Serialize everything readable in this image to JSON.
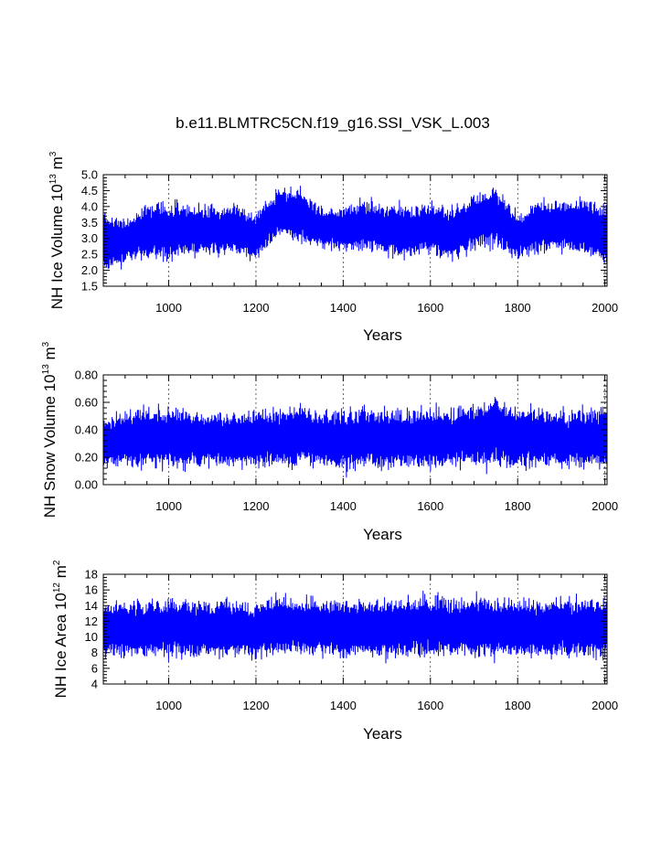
{
  "title": "b.e11.BLMTRC5CN.f19_g16.SSI_VSK_L.003",
  "colors": {
    "series": "#0000ff",
    "axes": "#000000",
    "grid": "#000000"
  },
  "chart_data": [
    {
      "type": "line",
      "name": "ice-volume",
      "ylabel_main": "NH Ice Volume 10",
      "ylabel_exp": "13",
      "ylabel_unit": " m",
      "ylabel_unit_exp": "3",
      "xlabel": "Years",
      "xlim": [
        850,
        2005
      ],
      "ylim": [
        1.5,
        5.0
      ],
      "xticks": [
        1000,
        1200,
        1400,
        1600,
        1800,
        2000
      ],
      "xtick_labels": [
        "1000",
        "1200",
        "1400",
        "1600",
        "1800",
        "2000"
      ],
      "yticks": [
        1.5,
        2.0,
        2.5,
        3.0,
        3.5,
        4.0,
        4.5,
        5.0
      ],
      "ytick_labels": [
        "1.5",
        "2.0",
        "2.5",
        "3.0",
        "3.5",
        "4.0",
        "4.5",
        "5.0"
      ],
      "grid": "vertical dashed at major x ticks",
      "series_envelope": {
        "x": [
          850,
          900,
          950,
          1000,
          1050,
          1100,
          1150,
          1200,
          1250,
          1300,
          1350,
          1400,
          1450,
          1500,
          1550,
          1600,
          1650,
          1700,
          1750,
          1800,
          1850,
          1900,
          1950,
          2005
        ],
        "low": [
          1.6,
          2.0,
          2.1,
          2.0,
          2.2,
          2.2,
          2.2,
          2.0,
          2.8,
          2.6,
          2.5,
          2.4,
          2.3,
          2.2,
          2.1,
          2.3,
          2.0,
          2.4,
          2.4,
          2.1,
          2.3,
          2.3,
          2.2,
          1.9
        ],
        "high": [
          4.2,
          3.8,
          4.4,
          4.4,
          4.3,
          4.3,
          4.4,
          4.0,
          4.8,
          4.9,
          4.2,
          4.2,
          4.5,
          4.3,
          4.3,
          4.4,
          4.2,
          4.6,
          4.9,
          4.0,
          4.5,
          4.5,
          4.6,
          4.3
        ]
      }
    },
    {
      "type": "line",
      "name": "snow-volume",
      "ylabel_main": "NH Snow Volume 10",
      "ylabel_exp": "13",
      "ylabel_unit": " m",
      "ylabel_unit_exp": "3",
      "xlabel": "Years",
      "xlim": [
        850,
        2005
      ],
      "ylim": [
        0.0,
        0.8
      ],
      "xticks": [
        1000,
        1200,
        1400,
        1600,
        1800,
        2000
      ],
      "xtick_labels": [
        "1000",
        "1200",
        "1400",
        "1600",
        "1800",
        "2000"
      ],
      "yticks": [
        0.0,
        0.2,
        0.4,
        0.6,
        0.8
      ],
      "ytick_labels": [
        "0.00",
        "0.20",
        "0.40",
        "0.60",
        "0.80"
      ],
      "grid": "vertical dashed at major x ticks",
      "series_envelope": {
        "x": [
          850,
          900,
          950,
          1000,
          1050,
          1100,
          1150,
          1200,
          1250,
          1300,
          1350,
          1400,
          1450,
          1500,
          1550,
          1600,
          1650,
          1700,
          1750,
          1800,
          1850,
          1900,
          1950,
          2005
        ],
        "low": [
          0.05,
          0.06,
          0.05,
          0.06,
          0.05,
          0.06,
          0.06,
          0.05,
          0.06,
          0.05,
          0.06,
          0.04,
          0.05,
          0.05,
          0.05,
          0.05,
          0.06,
          0.05,
          0.06,
          0.05,
          0.06,
          0.05,
          0.05,
          0.06
        ],
        "high": [
          0.55,
          0.6,
          0.63,
          0.62,
          0.62,
          0.6,
          0.6,
          0.62,
          0.63,
          0.64,
          0.62,
          0.6,
          0.62,
          0.63,
          0.62,
          0.63,
          0.62,
          0.66,
          0.72,
          0.62,
          0.64,
          0.6,
          0.62,
          0.62
        ]
      }
    },
    {
      "type": "line",
      "name": "ice-area",
      "ylabel_main": "NH Ice Area 10",
      "ylabel_exp": "12",
      "ylabel_unit": " m",
      "ylabel_unit_exp": "2",
      "xlabel": "Years",
      "xlim": [
        850,
        2005
      ],
      "ylim": [
        4,
        18
      ],
      "xticks": [
        1000,
        1200,
        1400,
        1600,
        1800,
        2000
      ],
      "xtick_labels": [
        "1000",
        "1200",
        "1400",
        "1600",
        "1800",
        "2000"
      ],
      "yticks": [
        4,
        6,
        8,
        10,
        12,
        14,
        16,
        18
      ],
      "ytick_labels": [
        "4",
        "6",
        "8",
        "10",
        "12",
        "14",
        "16",
        "18"
      ],
      "grid": "vertical dashed at major x ticks",
      "series_envelope": {
        "x": [
          850,
          900,
          950,
          1000,
          1050,
          1100,
          1150,
          1200,
          1250,
          1300,
          1350,
          1400,
          1450,
          1500,
          1550,
          1600,
          1650,
          1700,
          1750,
          1800,
          1850,
          1900,
          1950,
          2005
        ],
        "low": [
          6.2,
          6.2,
          6.3,
          6.2,
          6.1,
          6.2,
          6.3,
          6.0,
          6.3,
          6.4,
          6.3,
          6.2,
          6.3,
          6.2,
          6.3,
          6.2,
          6.2,
          6.3,
          6.2,
          6.1,
          6.2,
          6.3,
          6.1,
          6.0
        ],
        "high": [
          15.6,
          15.8,
          16.0,
          16.2,
          16.0,
          16.0,
          15.9,
          15.8,
          16.6,
          16.0,
          16.0,
          16.0,
          16.1,
          16.0,
          16.0,
          16.6,
          16.0,
          16.2,
          16.1,
          16.0,
          16.0,
          16.0,
          16.3,
          15.9
        ]
      }
    }
  ]
}
